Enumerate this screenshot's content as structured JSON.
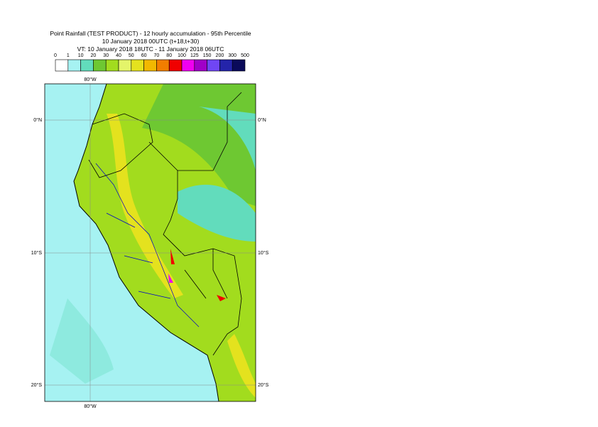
{
  "header": {
    "lines": [
      "Point Rainfall (TEST PRODUCT) - 12 hourly accumulation - 95th Percentile",
      "10 January 2018 00UTC (t+18,t+30)",
      "VT: 10 January 2018 18UTC - 11 January 2018 06UTC"
    ]
  },
  "legend": {
    "ticks": [
      0,
      1,
      10,
      20,
      30,
      40,
      50,
      60,
      70,
      80,
      100,
      125,
      150,
      200,
      300,
      500
    ],
    "colors": [
      "#ffffff",
      "#a6f2f2",
      "#62dcbc",
      "#6ec832",
      "#a2dc1e",
      "#e4f46a",
      "#e4e21e",
      "#f2b800",
      "#f27e00",
      "#f00000",
      "#f000f0",
      "#a000c8",
      "#7046f4",
      "#2424aa",
      "#0a0a5a"
    ]
  },
  "map": {
    "lon_labels": [
      "80°W"
    ],
    "lat_labels": [
      "0°N",
      "10°S",
      "20°S"
    ]
  }
}
